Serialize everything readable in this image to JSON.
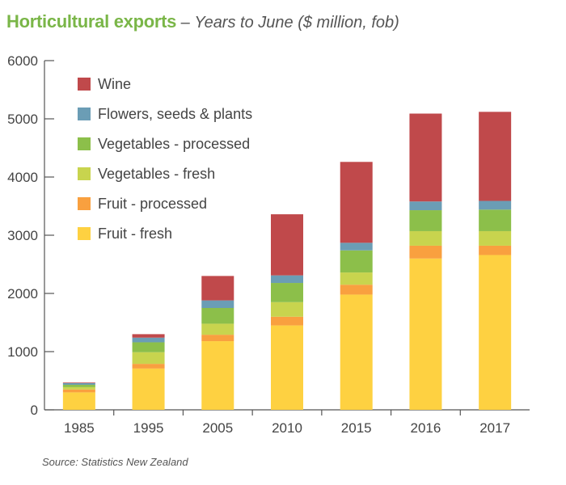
{
  "header": {
    "title": "Horticultural exports",
    "separator": " – ",
    "subtitle": "Years to June ($ million, fob)"
  },
  "source": "Source: Statistics New Zealand",
  "chart_data": {
    "type": "bar",
    "stacked": true,
    "categories": [
      "1985",
      "1995",
      "2005",
      "2010",
      "2015",
      "2016",
      "2017"
    ],
    "ylim": [
      0,
      6000
    ],
    "yticks": [
      0,
      1000,
      2000,
      3000,
      4000,
      5000,
      6000
    ],
    "grid": false,
    "legend_position": "top-left",
    "series": [
      {
        "name": "Fruit - fresh",
        "color": "#fed141",
        "values": [
          300,
          710,
          1180,
          1450,
          1980,
          2600,
          2660
        ]
      },
      {
        "name": "Fruit - processed",
        "color": "#f9a03f",
        "values": [
          50,
          80,
          110,
          150,
          170,
          220,
          160
        ]
      },
      {
        "name": "Vegetables - fresh",
        "color": "#c8d44e",
        "values": [
          40,
          200,
          190,
          250,
          210,
          250,
          250
        ]
      },
      {
        "name": "Vegetables - processed",
        "color": "#8cbf4a",
        "values": [
          40,
          170,
          270,
          330,
          380,
          360,
          370
        ]
      },
      {
        "name": "Flowers, seeds & plants",
        "color": "#6b9db5",
        "values": [
          30,
          80,
          130,
          130,
          130,
          150,
          150
        ]
      },
      {
        "name": "Wine",
        "color": "#c0494b",
        "values": [
          10,
          60,
          420,
          1050,
          1390,
          1510,
          1530
        ]
      }
    ]
  }
}
